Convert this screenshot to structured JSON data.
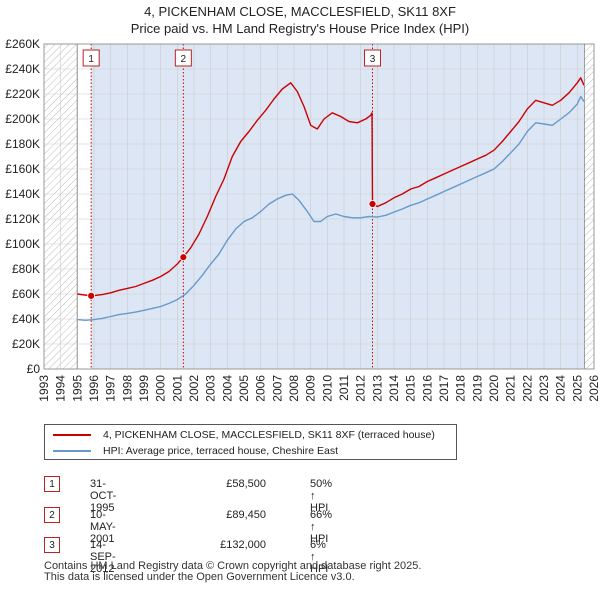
{
  "title_line1": "4, PICKENHAM CLOSE, MACCLESFIELD, SK11 8XF",
  "title_line2": "Price paid vs. HM Land Registry's House Price Index (HPI)",
  "colors": {
    "property": "#cc0000",
    "hpi": "#6699cc",
    "shade": "#dde6f4",
    "hatch": "#bbbbbb",
    "grid": "#cccccc"
  },
  "chart_data": {
    "type": "line",
    "x_range": [
      1993,
      2026
    ],
    "y_range": [
      0,
      260000
    ],
    "y_ticks": [
      0,
      20000,
      40000,
      60000,
      80000,
      100000,
      120000,
      140000,
      160000,
      180000,
      200000,
      220000,
      240000,
      260000
    ],
    "y_tick_labels": [
      "£0",
      "£20K",
      "£40K",
      "£60K",
      "£80K",
      "£100K",
      "£120K",
      "£140K",
      "£160K",
      "£180K",
      "£200K",
      "£220K",
      "£240K",
      "£260K"
    ],
    "x_ticks": [
      1993,
      1994,
      1995,
      1996,
      1997,
      1998,
      1999,
      2000,
      2001,
      2002,
      2003,
      2004,
      2005,
      2006,
      2007,
      2008,
      2009,
      2010,
      2011,
      2012,
      2013,
      2014,
      2015,
      2016,
      2017,
      2018,
      2019,
      2020,
      2021,
      2022,
      2023,
      2024,
      2025,
      2026
    ],
    "data_start": 1995.0,
    "data_end": 2025.4,
    "series": [
      {
        "name": "4, PICKENHAM CLOSE, MACCLESFIELD, SK11 8XF (terraced house)",
        "color": "#cc0000",
        "points": [
          [
            1995.0,
            60000
          ],
          [
            1995.83,
            58500
          ],
          [
            1996.5,
            59500
          ],
          [
            1997.0,
            61000
          ],
          [
            1997.5,
            63000
          ],
          [
            1998.0,
            64500
          ],
          [
            1998.5,
            66000
          ],
          [
            1999.0,
            68500
          ],
          [
            1999.5,
            71000
          ],
          [
            2000.0,
            74000
          ],
          [
            2000.5,
            78000
          ],
          [
            2001.0,
            84000
          ],
          [
            2001.36,
            89450
          ],
          [
            2001.8,
            97000
          ],
          [
            2002.3,
            108000
          ],
          [
            2002.8,
            122000
          ],
          [
            2003.3,
            138000
          ],
          [
            2003.8,
            152000
          ],
          [
            2004.3,
            170000
          ],
          [
            2004.8,
            182000
          ],
          [
            2005.3,
            190000
          ],
          [
            2005.8,
            199000
          ],
          [
            2006.3,
            207000
          ],
          [
            2006.8,
            216000
          ],
          [
            2007.3,
            224000
          ],
          [
            2007.8,
            229000
          ],
          [
            2008.2,
            222000
          ],
          [
            2008.6,
            210000
          ],
          [
            2009.0,
            195000
          ],
          [
            2009.4,
            192000
          ],
          [
            2009.8,
            200000
          ],
          [
            2010.3,
            205000
          ],
          [
            2010.8,
            202000
          ],
          [
            2011.3,
            198000
          ],
          [
            2011.8,
            197000
          ],
          [
            2012.3,
            200000
          ],
          [
            2012.6,
            203000
          ],
          [
            2012.68,
            205000
          ],
          [
            2012.71,
            132000
          ],
          [
            2013.0,
            130000
          ],
          [
            2013.5,
            133000
          ],
          [
            2014.0,
            137000
          ],
          [
            2014.5,
            140000
          ],
          [
            2015.0,
            144000
          ],
          [
            2015.5,
            146000
          ],
          [
            2016.0,
            150000
          ],
          [
            2016.5,
            153000
          ],
          [
            2017.0,
            156000
          ],
          [
            2017.5,
            159000
          ],
          [
            2018.0,
            162000
          ],
          [
            2018.5,
            165000
          ],
          [
            2019.0,
            168000
          ],
          [
            2019.5,
            171000
          ],
          [
            2020.0,
            175000
          ],
          [
            2020.5,
            182000
          ],
          [
            2021.0,
            190000
          ],
          [
            2021.5,
            198000
          ],
          [
            2022.0,
            208000
          ],
          [
            2022.5,
            215000
          ],
          [
            2023.0,
            213000
          ],
          [
            2023.5,
            211000
          ],
          [
            2024.0,
            215000
          ],
          [
            2024.5,
            221000
          ],
          [
            2025.0,
            229000
          ],
          [
            2025.2,
            233000
          ],
          [
            2025.4,
            227000
          ]
        ]
      },
      {
        "name": "HPI: Average price, terraced house, Cheshire East",
        "color": "#6699cc",
        "points": [
          [
            1995.0,
            39500
          ],
          [
            1995.5,
            39000
          ],
          [
            1996.0,
            39500
          ],
          [
            1996.5,
            40500
          ],
          [
            1997.0,
            42000
          ],
          [
            1997.5,
            43500
          ],
          [
            1998.0,
            44500
          ],
          [
            1998.5,
            45500
          ],
          [
            1999.0,
            47000
          ],
          [
            1999.5,
            48500
          ],
          [
            2000.0,
            50000
          ],
          [
            2000.5,
            52500
          ],
          [
            2001.0,
            55500
          ],
          [
            2001.5,
            60000
          ],
          [
            2002.0,
            67000
          ],
          [
            2002.5,
            75000
          ],
          [
            2003.0,
            84000
          ],
          [
            2003.5,
            92000
          ],
          [
            2004.0,
            103000
          ],
          [
            2004.5,
            112000
          ],
          [
            2005.0,
            118000
          ],
          [
            2005.5,
            121000
          ],
          [
            2006.0,
            126000
          ],
          [
            2006.5,
            132000
          ],
          [
            2007.0,
            136000
          ],
          [
            2007.5,
            139000
          ],
          [
            2007.9,
            140000
          ],
          [
            2008.3,
            135000
          ],
          [
            2008.8,
            126000
          ],
          [
            2009.2,
            118000
          ],
          [
            2009.6,
            118000
          ],
          [
            2010.0,
            122000
          ],
          [
            2010.5,
            124000
          ],
          [
            2011.0,
            122000
          ],
          [
            2011.5,
            121000
          ],
          [
            2012.0,
            121000
          ],
          [
            2012.5,
            122000
          ],
          [
            2013.0,
            121500
          ],
          [
            2013.5,
            123000
          ],
          [
            2014.0,
            125500
          ],
          [
            2014.5,
            128000
          ],
          [
            2015.0,
            131000
          ],
          [
            2015.5,
            133000
          ],
          [
            2016.0,
            136000
          ],
          [
            2016.5,
            139000
          ],
          [
            2017.0,
            142000
          ],
          [
            2017.5,
            145000
          ],
          [
            2018.0,
            148000
          ],
          [
            2018.5,
            151000
          ],
          [
            2019.0,
            154000
          ],
          [
            2019.5,
            157000
          ],
          [
            2020.0,
            160000
          ],
          [
            2020.5,
            166000
          ],
          [
            2021.0,
            173000
          ],
          [
            2021.5,
            180000
          ],
          [
            2022.0,
            190000
          ],
          [
            2022.5,
            197000
          ],
          [
            2023.0,
            196000
          ],
          [
            2023.5,
            195000
          ],
          [
            2024.0,
            200000
          ],
          [
            2024.5,
            205000
          ],
          [
            2025.0,
            212000
          ],
          [
            2025.2,
            218000
          ],
          [
            2025.4,
            214000
          ]
        ]
      }
    ],
    "sales": [
      {
        "label": "1",
        "date": 1995.83,
        "price": 58500
      },
      {
        "label": "2",
        "date": 2001.36,
        "price": 89450
      },
      {
        "label": "3",
        "date": 2012.71,
        "price": 132000
      }
    ]
  },
  "legend": {
    "property": "4, PICKENHAM CLOSE, MACCLESFIELD, SK11 8XF (terraced house)",
    "hpi": "HPI: Average price, terraced house, Cheshire East"
  },
  "transactions": [
    {
      "num": "1",
      "date": "31-OCT-1995",
      "price": "£58,500",
      "hpi": "50% ↑ HPI"
    },
    {
      "num": "2",
      "date": "10-MAY-2001",
      "price": "£89,450",
      "hpi": "66% ↑ HPI"
    },
    {
      "num": "3",
      "date": "14-SEP-2012",
      "price": "£132,000",
      "hpi": "6% ↑ HPI"
    }
  ],
  "footer": {
    "line1": "Contains HM Land Registry data © Crown copyright and database right 2025.",
    "line2": "This data is licensed under the Open Government Licence v3.0."
  }
}
